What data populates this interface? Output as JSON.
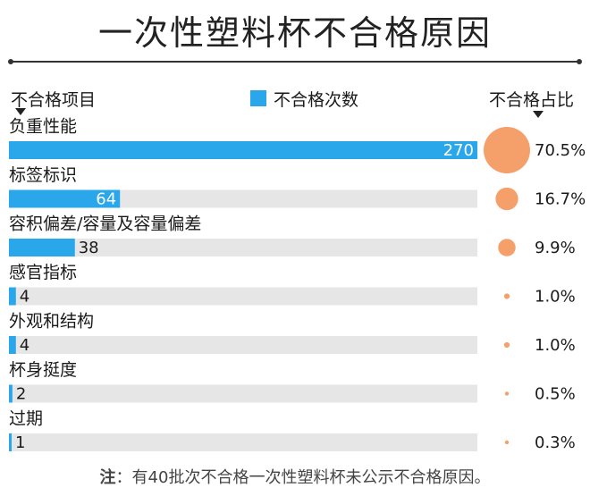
{
  "title": "一次性塑料杯不合格原因",
  "headers": {
    "category": "不合格项目",
    "legend": "不合格次数",
    "percent": "不合格占比"
  },
  "colors": {
    "bar": "#2aa7ea",
    "track": "#e6e6e6",
    "bubble": "#f5a06b",
    "text": "#1a1a1a"
  },
  "note": {
    "prefix": "注",
    "text": "：有40批次不合格一次性塑料杯未公示不合格原因。"
  },
  "chart_data": {
    "type": "bar",
    "orientation": "horizontal",
    "categories": [
      "负重性能",
      "标签标识",
      "容积偏差/容量及容量偏差",
      "感官指标",
      "外观和结构",
      "杯身挺度",
      "过期"
    ],
    "series": [
      {
        "name": "不合格次数",
        "values": [
          270,
          64,
          38,
          4,
          4,
          2,
          1
        ]
      }
    ],
    "percent_labels": [
      "70.5%",
      "16.7%",
      "9.9%",
      "1.0%",
      "1.0%",
      "0.5%",
      "0.3%"
    ],
    "percent_values": [
      70.5,
      16.7,
      9.9,
      1.0,
      1.0,
      0.5,
      0.3
    ],
    "xlim": [
      0,
      270
    ],
    "grid": false,
    "legend_position": "top"
  }
}
